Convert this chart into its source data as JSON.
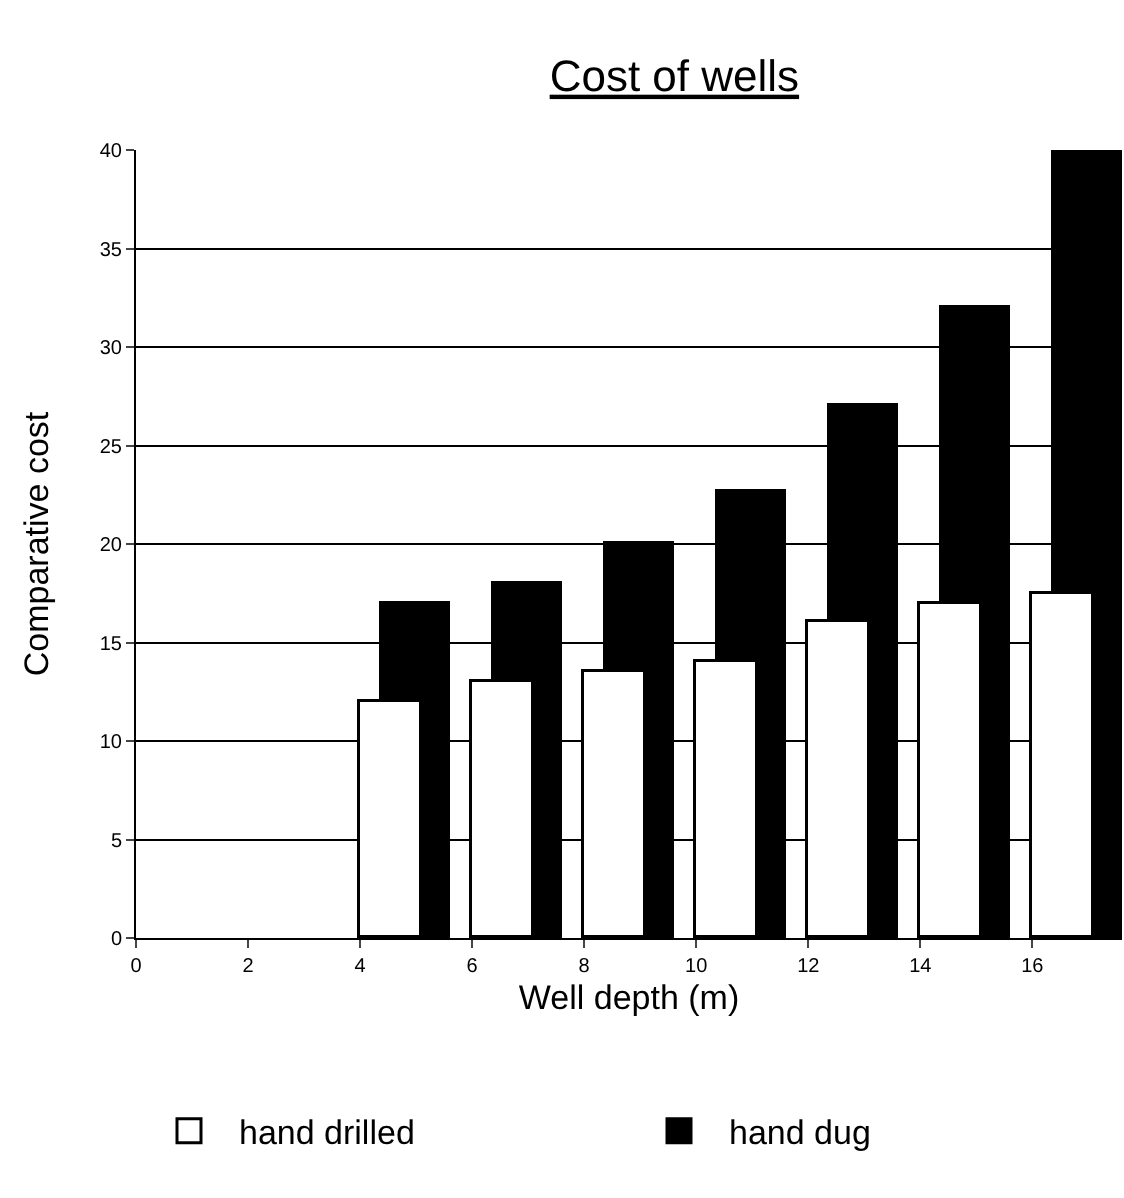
{
  "chart_data": {
    "type": "bar",
    "title": "Cost of wells",
    "xlabel": "Well depth (m)",
    "ylabel": "Comparative cost",
    "x": [
      5,
      7,
      9,
      11,
      13,
      15,
      17
    ],
    "series": [
      {
        "name": "hand drilled",
        "color": "#ffffff",
        "values": [
          12,
          13,
          13.5,
          14,
          16,
          17,
          17.5
        ]
      },
      {
        "name": "hand dug",
        "color": "#000000",
        "values": [
          17,
          18,
          20,
          22.6,
          27,
          32,
          40
        ]
      }
    ],
    "xlim": [
      0,
      17.6
    ],
    "xticks": [
      0,
      2,
      4,
      6,
      8,
      10,
      12,
      14,
      16
    ],
    "ylim": [
      0,
      40
    ],
    "yticks": [
      0,
      5,
      10,
      15,
      20,
      25,
      30,
      35,
      40
    ],
    "grid": "y",
    "legend": "bottom"
  }
}
